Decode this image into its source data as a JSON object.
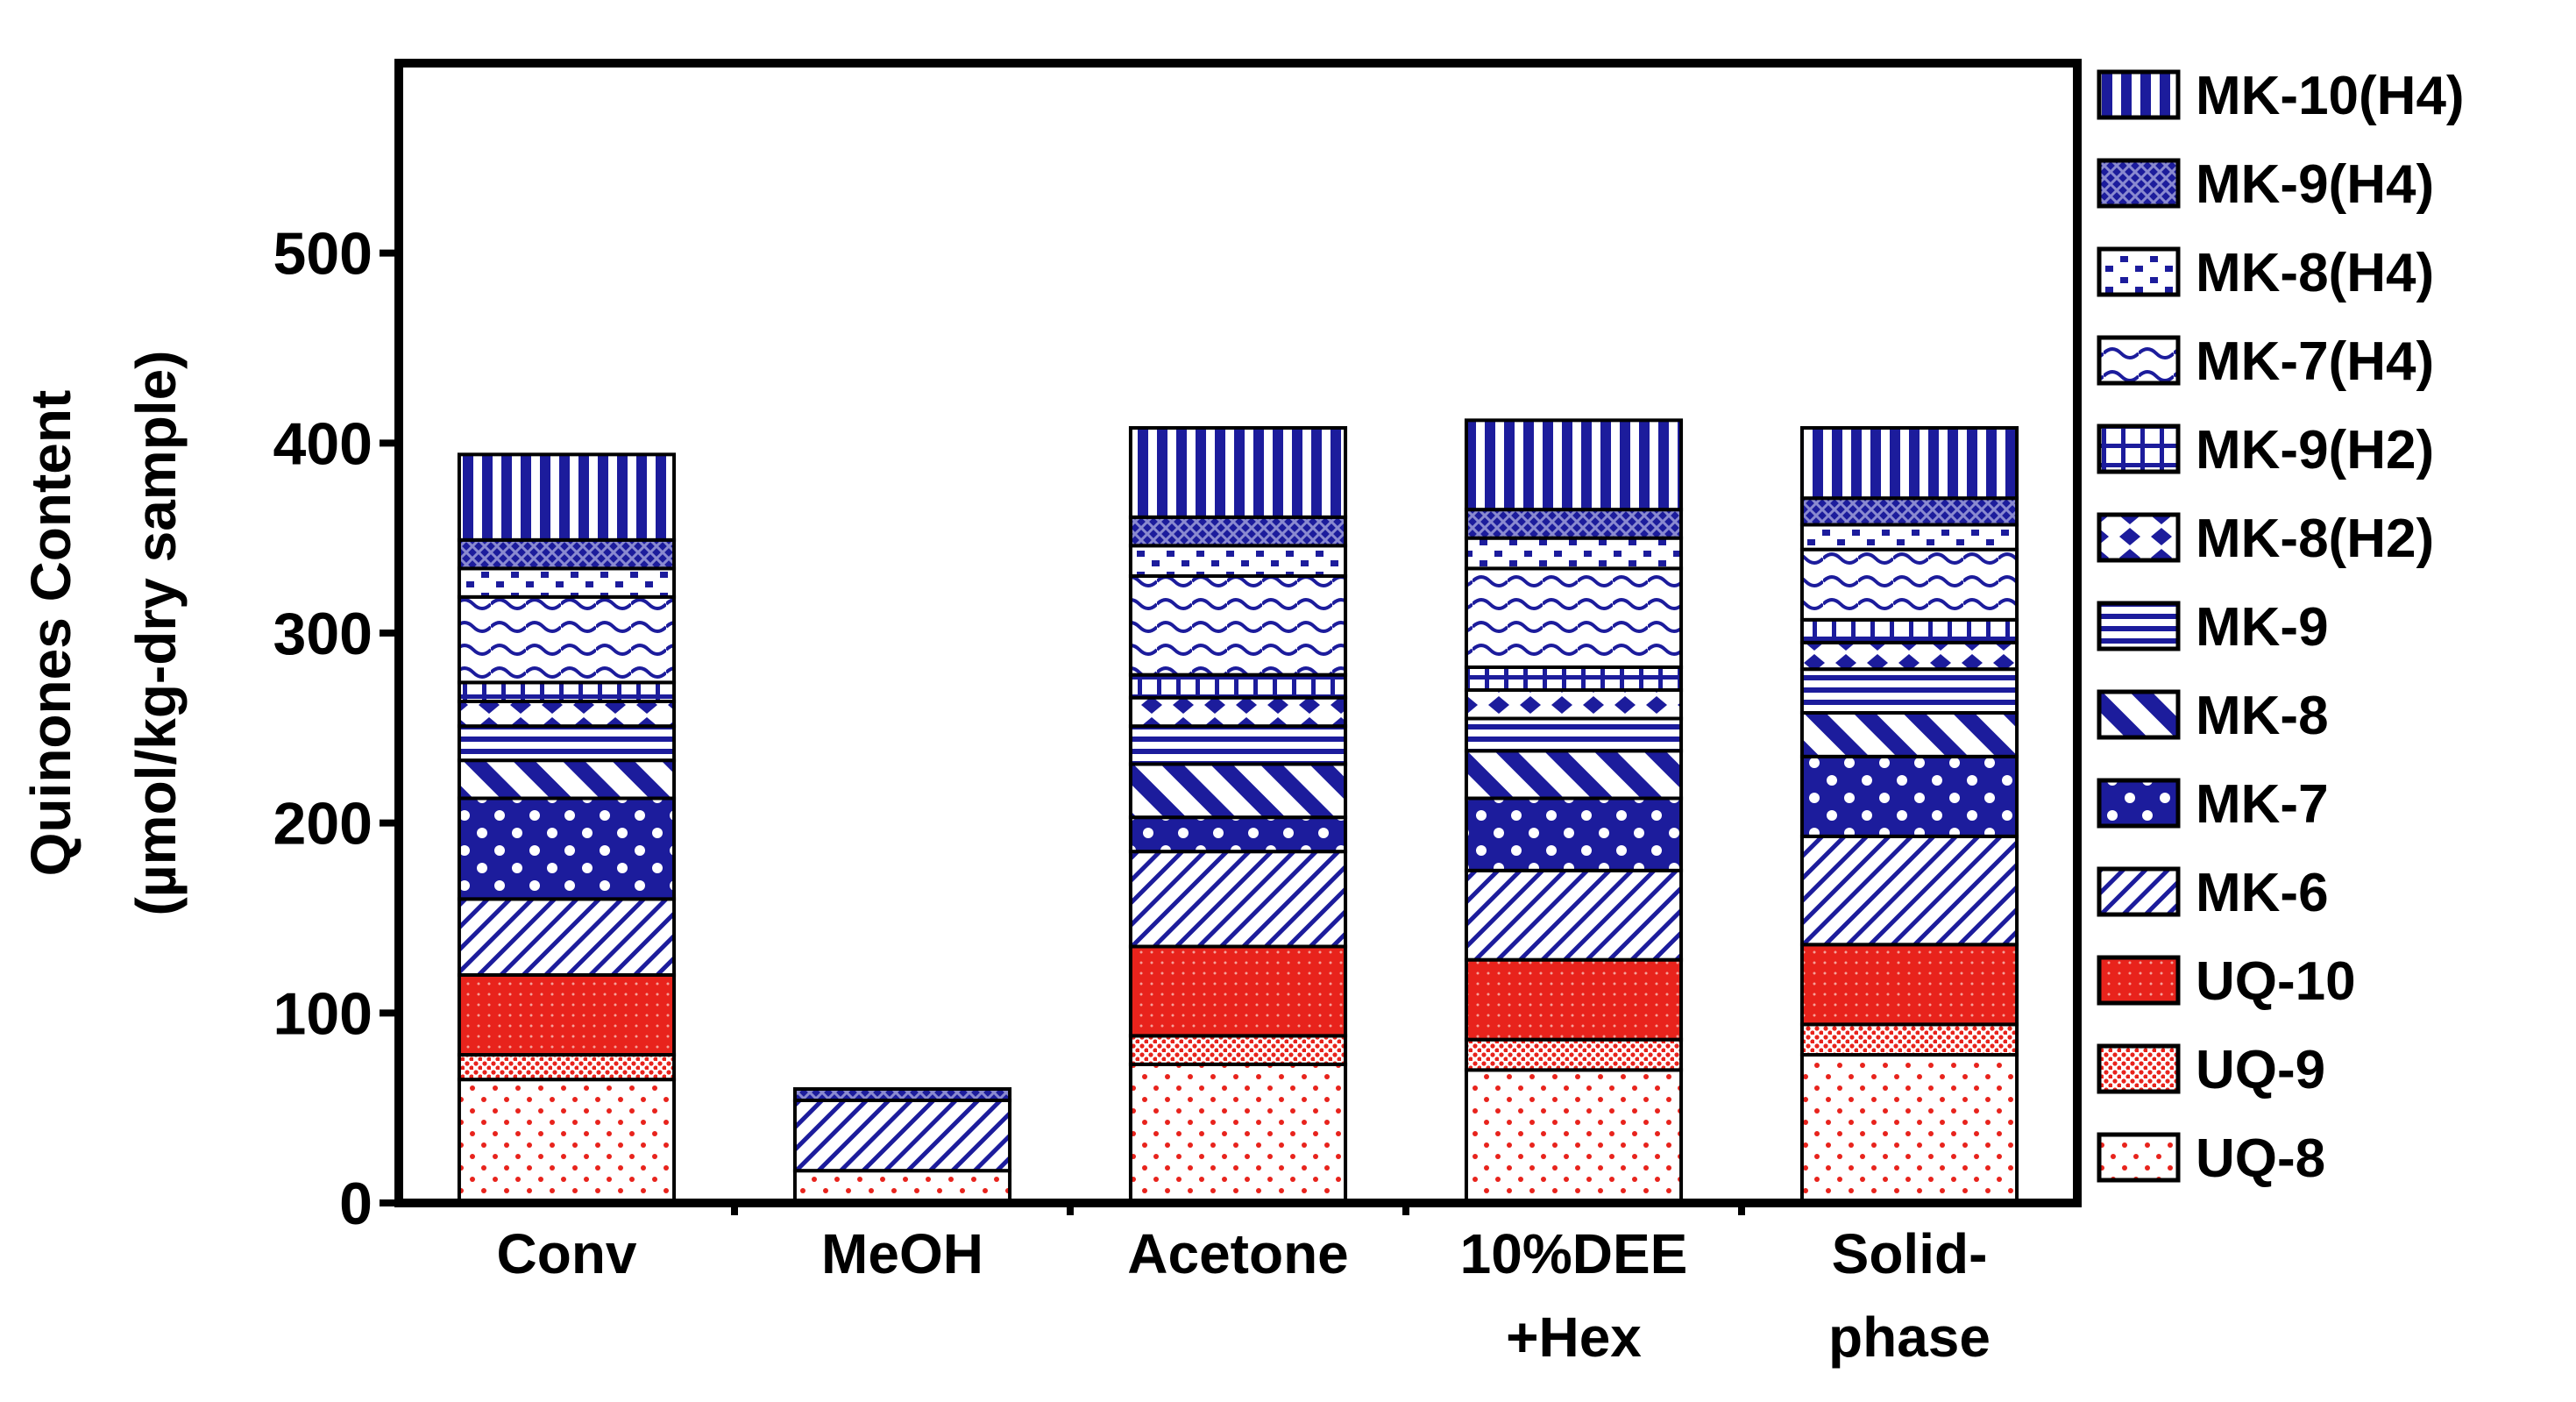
{
  "chart_data": {
    "type": "bar",
    "stacked": true,
    "title": "",
    "xlabel": "",
    "ylabel": [
      "Quinones Content",
      "(µmol/kg-dry sample)"
    ],
    "ylim": [
      0,
      600
    ],
    "yticks": [
      "0",
      "100",
      "200",
      "300",
      "400",
      "500"
    ],
    "grid": false,
    "legend_position": "right",
    "categories": [
      [
        "Conv"
      ],
      [
        "MeOH"
      ],
      [
        "Acetone"
      ],
      [
        "10%DEE",
        "+Hex"
      ],
      [
        "Solid-",
        "phase"
      ]
    ],
    "series": [
      {
        "name": "UQ-8",
        "color": "#e8231c",
        "pattern": "dots-sparse",
        "values": [
          65,
          17,
          73,
          70,
          78
        ]
      },
      {
        "name": "UQ-9",
        "color": "#e8231c",
        "pattern": "dots-dense",
        "values": [
          13,
          0,
          15,
          16,
          16
        ]
      },
      {
        "name": "UQ-10",
        "color": "#e8231c",
        "pattern": "solid",
        "values": [
          42,
          0,
          47,
          42,
          42
        ]
      },
      {
        "name": "MK-6",
        "color": "#1c1c9c",
        "pattern": "diag-thin",
        "values": [
          40,
          37,
          50,
          47,
          57
        ]
      },
      {
        "name": "MK-7",
        "color": "#1c1c9c",
        "pattern": "circles",
        "values": [
          53,
          0,
          18,
          38,
          42
        ]
      },
      {
        "name": "MK-8",
        "color": "#1c1c9c",
        "pattern": "diag-thick",
        "values": [
          20,
          0,
          28,
          25,
          23
        ]
      },
      {
        "name": "MK-9",
        "color": "#1c1c9c",
        "pattern": "hlines",
        "values": [
          18,
          0,
          20,
          17,
          23
        ]
      },
      {
        "name": "MK-8(H2)",
        "color": "#1c1c9c",
        "pattern": "diamonds",
        "values": [
          13,
          0,
          15,
          15,
          14
        ]
      },
      {
        "name": "MK-9(H2)",
        "color": "#1c1c9c",
        "pattern": "grid",
        "values": [
          10,
          0,
          12,
          12,
          12
        ]
      },
      {
        "name": "MK-7(H4)",
        "color": "#1c1c9c",
        "pattern": "waves",
        "values": [
          45,
          0,
          52,
          52,
          37
        ]
      },
      {
        "name": "MK-8(H4)",
        "color": "#1c1c9c",
        "pattern": "dotsq",
        "values": [
          15,
          0,
          16,
          16,
          13
        ]
      },
      {
        "name": "MK-9(H4)",
        "color": "#1c1c9c",
        "pattern": "cross",
        "values": [
          15,
          6,
          15,
          15,
          14
        ]
      },
      {
        "name": "MK-10(H4)",
        "color": "#1c1c9c",
        "pattern": "vlines",
        "values": [
          45,
          0,
          47,
          47,
          37
        ]
      }
    ]
  }
}
